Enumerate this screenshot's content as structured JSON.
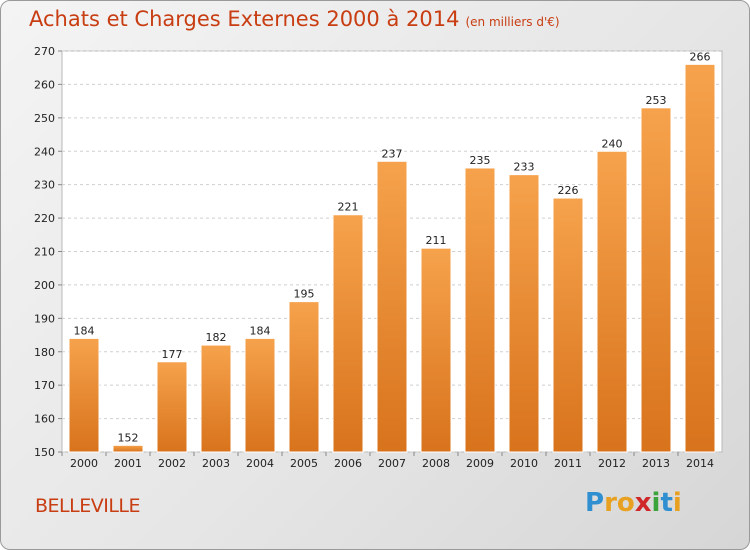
{
  "title": "Achats et Charges Externes 2000 à 2014",
  "unit": "(en milliers d'€)",
  "town": "BELLEVILLE",
  "logo": {
    "letters": [
      "P",
      "r",
      "o",
      "x",
      "i",
      "t",
      "i"
    ],
    "colors": [
      "#2f8fd0",
      "#e8a020",
      "#e8a020",
      "#d02828",
      "#3aa43a",
      "#2f8fd0",
      "#e8a020"
    ]
  },
  "colors": {
    "bar_top": "#f6a24c",
    "bar_bottom": "#d8731c",
    "text_accent": "#c83d12"
  },
  "chart_data": {
    "type": "bar",
    "categories": [
      "2000",
      "2001",
      "2002",
      "2003",
      "2004",
      "2005",
      "2006",
      "2007",
      "2008",
      "2009",
      "2010",
      "2011",
      "2012",
      "2013",
      "2014"
    ],
    "values": [
      184,
      152,
      177,
      182,
      184,
      195,
      221,
      237,
      211,
      235,
      233,
      226,
      240,
      253,
      266
    ],
    "ylim": [
      150,
      270
    ],
    "yticks": [
      150,
      160,
      170,
      180,
      190,
      200,
      210,
      220,
      230,
      240,
      250,
      260,
      270
    ],
    "grid": true,
    "data_labels": true
  }
}
